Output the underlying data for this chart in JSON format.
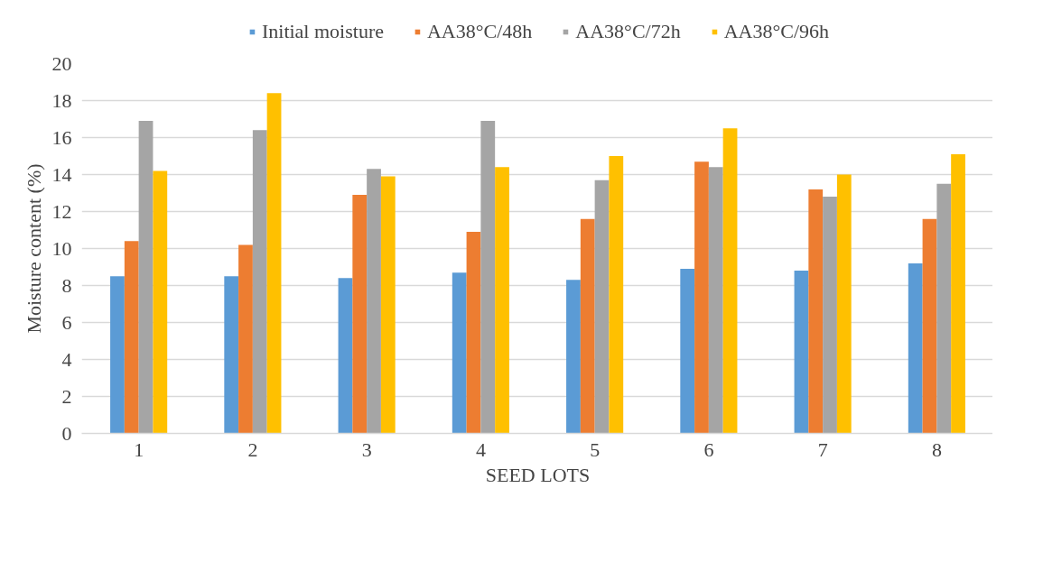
{
  "chart_data": {
    "type": "bar",
    "xlabel": "SEED LOTS",
    "ylabel": "Moisture content (%)",
    "categories": [
      "1",
      "2",
      "3",
      "4",
      "5",
      "6",
      "7",
      "8"
    ],
    "series": [
      {
        "name": "Initial moisture",
        "color": "#5b9bd5",
        "values": [
          8.5,
          8.5,
          8.4,
          8.7,
          8.3,
          8.9,
          8.8,
          9.2
        ]
      },
      {
        "name": "AA38°C/48h",
        "color": "#ed7d31",
        "values": [
          10.4,
          10.2,
          12.9,
          10.9,
          11.6,
          14.7,
          13.2,
          11.6
        ]
      },
      {
        "name": "AA38°C/72h",
        "color": "#a5a5a5",
        "values": [
          16.9,
          16.4,
          14.3,
          16.9,
          13.7,
          14.4,
          12.8,
          13.5
        ]
      },
      {
        "name": "AA38°C/96h",
        "color": "#ffc000",
        "values": [
          14.2,
          18.4,
          13.9,
          14.4,
          15.0,
          16.5,
          14.0,
          15.1
        ]
      }
    ],
    "ylim": [
      0,
      20
    ],
    "yticks": [
      0,
      2,
      4,
      6,
      8,
      10,
      12,
      14,
      16,
      18,
      20
    ],
    "grid": "y",
    "legend": "top"
  }
}
